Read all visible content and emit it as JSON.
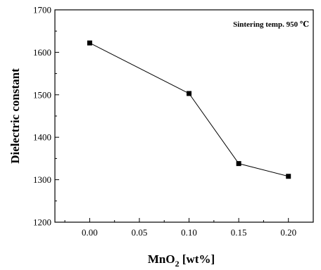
{
  "chart_data": {
    "type": "line",
    "title": "",
    "xlabel": "MnO",
    "xlabel_subscript": "2",
    "xlabel_suffix": " [wt%]",
    "ylabel": "Dielectric constant",
    "annotation": "Sintering temp. 950 ℃",
    "xlim": [
      -0.035,
      0.225
    ],
    "ylim": [
      1200,
      1700
    ],
    "x_ticks": [
      0.0,
      0.05,
      0.1,
      0.15,
      0.2
    ],
    "x_tick_labels": [
      "0.00",
      "0.05",
      "0.10",
      "0.15",
      "0.20"
    ],
    "y_ticks": [
      1200,
      1300,
      1400,
      1500,
      1600,
      1700
    ],
    "y_tick_labels": [
      "1200",
      "1300",
      "1400",
      "1500",
      "1600",
      "1700"
    ],
    "grid": false,
    "series": [
      {
        "x": [
          0.0,
          0.1,
          0.15,
          0.2
        ],
        "y": [
          1622,
          1503,
          1338,
          1308
        ],
        "marker": "square",
        "color": "#000000"
      }
    ]
  }
}
